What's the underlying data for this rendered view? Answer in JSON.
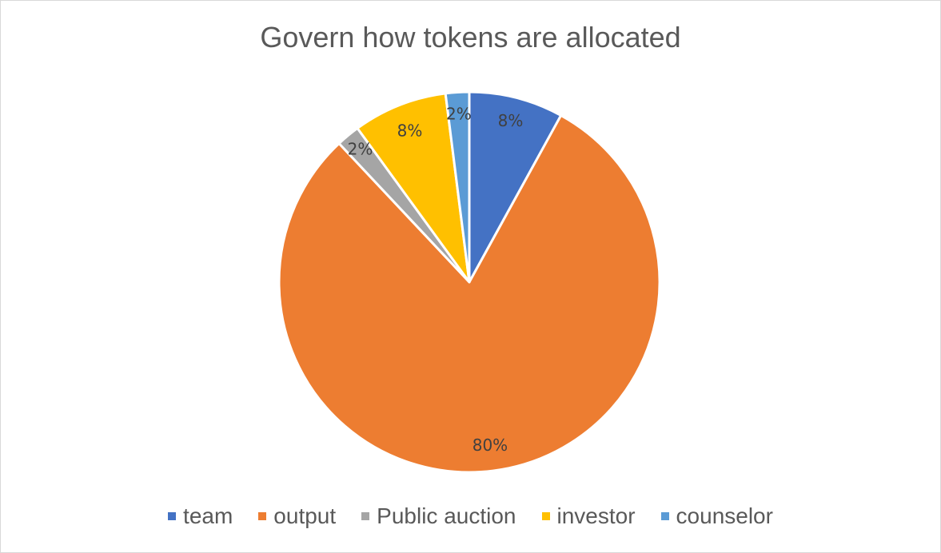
{
  "chart_data": {
    "type": "pie",
    "title": "Govern how tokens are allocated",
    "categories": [
      "team",
      "output",
      "Public auction",
      "investor",
      "counselor"
    ],
    "values": [
      8,
      80,
      2,
      8,
      2
    ],
    "data_labels": [
      "8%",
      "80%",
      "2%",
      "8%",
      "2%"
    ],
    "colors": [
      "#4472c4",
      "#ed7d31",
      "#a5a5a5",
      "#ffc000",
      "#5b9bd5"
    ],
    "legend_position": "bottom",
    "start_angle_deg": 0,
    "direction": "clockwise"
  }
}
